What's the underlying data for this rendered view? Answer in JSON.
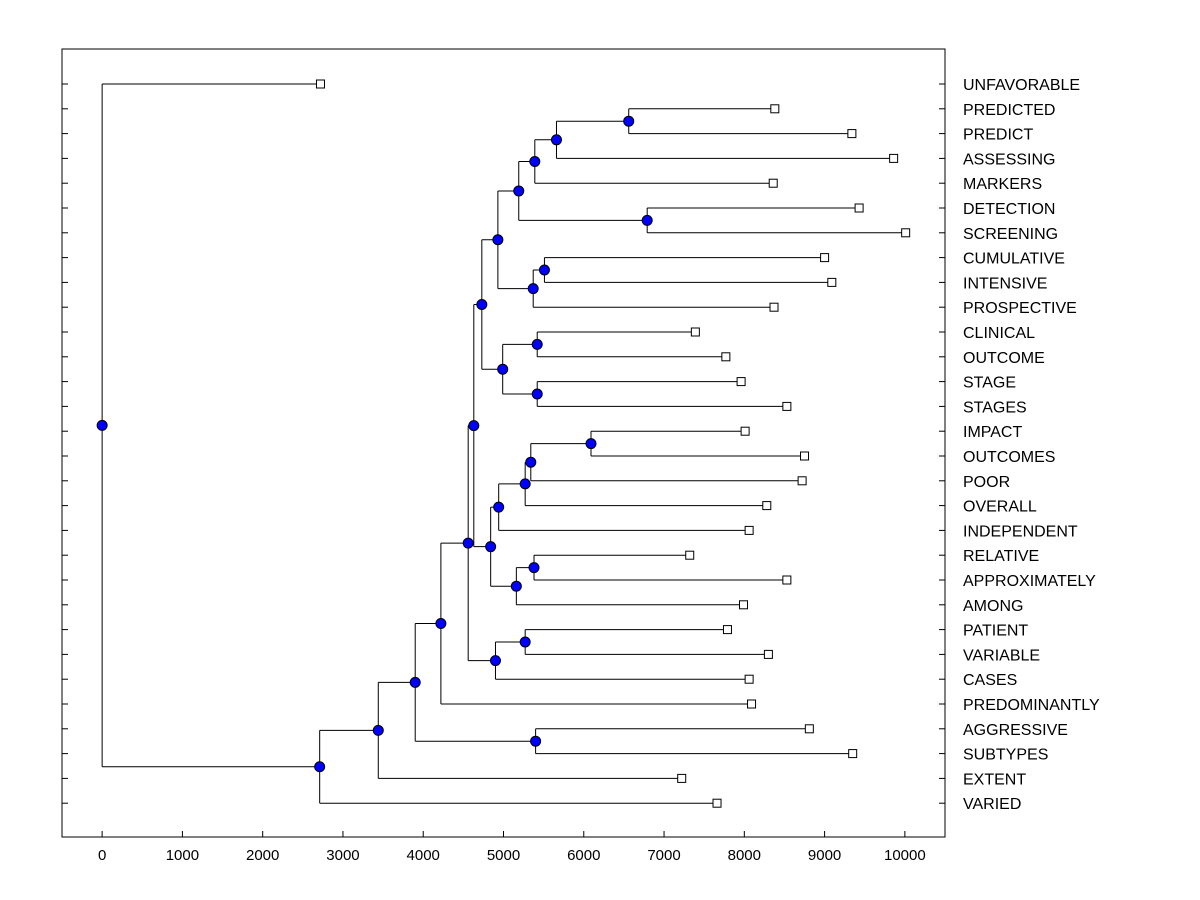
{
  "chart_data": {
    "type": "dendrogram",
    "title": "",
    "xlabel": "",
    "ylabel": "",
    "xlim": [
      -500,
      10500
    ],
    "x_ticks": [
      0,
      1000,
      2000,
      3000,
      4000,
      5000,
      6000,
      7000,
      8000,
      9000,
      10000
    ],
    "x_tick_labels": [
      "0",
      "1000",
      "2000",
      "3000",
      "4000",
      "5000",
      "6000",
      "7000",
      "8000",
      "9000",
      "10000"
    ],
    "grid": false,
    "legend": "none",
    "colors": {
      "node_fill": "#0000ff",
      "leaf_fill": "#ffffff",
      "line": "#000000",
      "background": "#ffffff"
    },
    "leaves": [
      {
        "label": "UNFAVORABLE",
        "value": 2720
      },
      {
        "label": "PREDICTED",
        "value": 8380
      },
      {
        "label": "PREDICT",
        "value": 9340
      },
      {
        "label": "ASSESSING",
        "value": 9860
      },
      {
        "label": "MARKERS",
        "value": 8360
      },
      {
        "label": "DETECTION",
        "value": 9430
      },
      {
        "label": "SCREENING",
        "value": 10010
      },
      {
        "label": "CUMULATIVE",
        "value": 9000
      },
      {
        "label": "INTENSIVE",
        "value": 9090
      },
      {
        "label": "PROSPECTIVE",
        "value": 8370
      },
      {
        "label": "CLINICAL",
        "value": 7390
      },
      {
        "label": "OUTCOME",
        "value": 7770
      },
      {
        "label": "STAGE",
        "value": 7960
      },
      {
        "label": "STAGES",
        "value": 8530
      },
      {
        "label": "IMPACT",
        "value": 8010
      },
      {
        "label": "OUTCOMES",
        "value": 8750
      },
      {
        "label": "POOR",
        "value": 8720
      },
      {
        "label": "OVERALL",
        "value": 8280
      },
      {
        "label": "INDEPENDENT",
        "value": 8060
      },
      {
        "label": "RELATIVE",
        "value": 7320
      },
      {
        "label": "APPROXIMATELY",
        "value": 8530
      },
      {
        "label": "AMONG",
        "value": 7990
      },
      {
        "label": "PATIENT",
        "value": 7790
      },
      {
        "label": "VARIABLE",
        "value": 8300
      },
      {
        "label": "CASES",
        "value": 8060
      },
      {
        "label": "PREDOMINANTLY",
        "value": 8090
      },
      {
        "label": "AGGRESSIVE",
        "value": 8810
      },
      {
        "label": "SUBTYPES",
        "value": 9350
      },
      {
        "label": "EXTENT",
        "value": 7220
      },
      {
        "label": "VARIED",
        "value": 7660
      }
    ],
    "tree": {
      "v": 0,
      "c": [
        0,
        {
          "v": 2710,
          "c": [
            {
              "v": 3440,
              "c": [
                {
                  "v": 3900,
                  "c": [
                    {
                      "v": 4220,
                      "c": [
                        {
                          "v": 4560,
                          "c": [
                            {
                              "v": 4630,
                              "c": [
                                {
                                  "v": 4730,
                                  "c": [
                                    {
                                      "v": 4930,
                                      "c": [
                                        {
                                          "v": 5190,
                                          "c": [
                                            {
                                              "v": 5390,
                                              "c": [
                                                {
                                                  "v": 5660,
                                                  "c": [
                                                    {
                                                      "v": 6560,
                                                      "c": [
                                                        1,
                                                        2
                                                      ]
                                                    },
                                                    3
                                                  ]
                                                },
                                                4
                                              ]
                                            },
                                            {
                                              "v": 6790,
                                              "c": [
                                                5,
                                                6
                                              ]
                                            }
                                          ]
                                        },
                                        {
                                          "v": 5370,
                                          "c": [
                                            {
                                              "v": 5510,
                                              "c": [
                                                7,
                                                8
                                              ]
                                            },
                                            9
                                          ]
                                        }
                                      ]
                                    },
                                    {
                                      "v": 4990,
                                      "c": [
                                        {
                                          "v": 5420,
                                          "c": [
                                            10,
                                            11
                                          ]
                                        },
                                        {
                                          "v": 5420,
                                          "c": [
                                            12,
                                            13
                                          ]
                                        }
                                      ]
                                    }
                                  ]
                                },
                                {
                                  "v": 4840,
                                  "c": [
                                    {
                                      "v": 4940,
                                      "c": [
                                        {
                                          "v": 5270,
                                          "c": [
                                            {
                                              "v": 5340,
                                              "c": [
                                                {
                                                  "v": 6090,
                                                  "c": [
                                                    14,
                                                    15
                                                  ]
                                                },
                                                16
                                              ]
                                            },
                                            17
                                          ]
                                        },
                                        18
                                      ]
                                    },
                                    {
                                      "v": 5160,
                                      "c": [
                                        {
                                          "v": 5380,
                                          "c": [
                                            19,
                                            20
                                          ]
                                        },
                                        21
                                      ]
                                    }
                                  ]
                                }
                              ]
                            },
                            {
                              "v": 4900,
                              "c": [
                                {
                                  "v": 5270,
                                  "c": [
                                    22,
                                    23
                                  ]
                                },
                                24
                              ]
                            }
                          ]
                        },
                        25
                      ]
                    },
                    {
                      "v": 5400,
                      "c": [
                        26,
                        27
                      ]
                    }
                  ]
                },
                28
              ]
            },
            29
          ]
        }
      ]
    }
  }
}
